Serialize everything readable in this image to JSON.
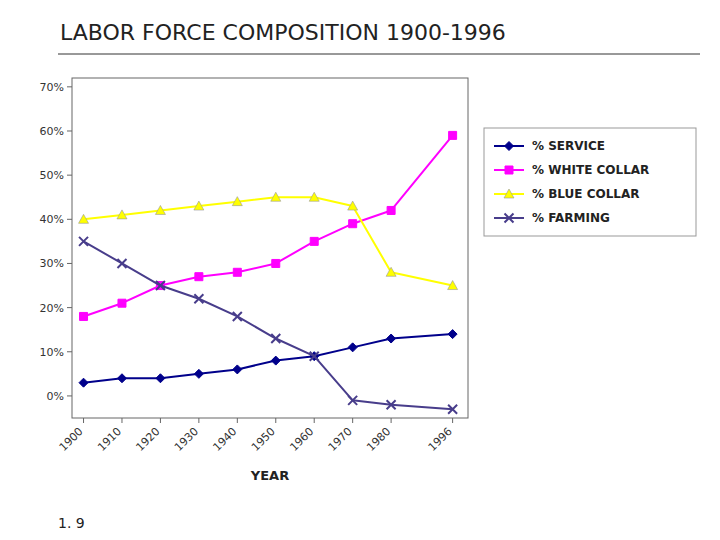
{
  "chart_data": {
    "type": "line",
    "title": "LABOR FORCE COMPOSITION 1900-1996",
    "footnote": "1. 9",
    "x_label": "YEAR",
    "x": [
      1900,
      1910,
      1920,
      1930,
      1940,
      1950,
      1960,
      1970,
      1980,
      1996
    ],
    "series": [
      {
        "name": "% SERVICE",
        "color": "#00008B",
        "marker": "diamond",
        "values": [
          3,
          4,
          4,
          5,
          6,
          8,
          9,
          11,
          13,
          14
        ]
      },
      {
        "name": "% WHITE COLLAR",
        "color": "#FF00FF",
        "marker": "square",
        "values": [
          18,
          21,
          25,
          27,
          28,
          30,
          35,
          39,
          42,
          59
        ]
      },
      {
        "name": "% BLUE COLLAR",
        "color": "#FFFF00",
        "marker": "triangle",
        "values": [
          40,
          41,
          42,
          43,
          44,
          45,
          45,
          43,
          28,
          25
        ]
      },
      {
        "name": "% FARMING",
        "color": "#483D8B",
        "marker": "x",
        "values": [
          35,
          30,
          25,
          22,
          18,
          13,
          9,
          -1,
          -2,
          -3
        ]
      }
    ],
    "xlim": [
      1897,
      2000
    ],
    "xticks": [
      1900,
      1910,
      1920,
      1930,
      1940,
      1950,
      1960,
      1970,
      1980,
      1996
    ],
    "ylim": [
      -5,
      72
    ],
    "yticks": [
      {
        "value": 0,
        "label": "0%"
      },
      {
        "value": 10,
        "label": "10%"
      },
      {
        "value": 20,
        "label": "20%"
      },
      {
        "value": 30,
        "label": "30%"
      },
      {
        "value": 40,
        "label": "40%"
      },
      {
        "value": 50,
        "label": "50%"
      },
      {
        "value": 60,
        "label": "60%"
      },
      {
        "value": 70,
        "label": "70%"
      }
    ],
    "grid": false,
    "legend": "right"
  }
}
